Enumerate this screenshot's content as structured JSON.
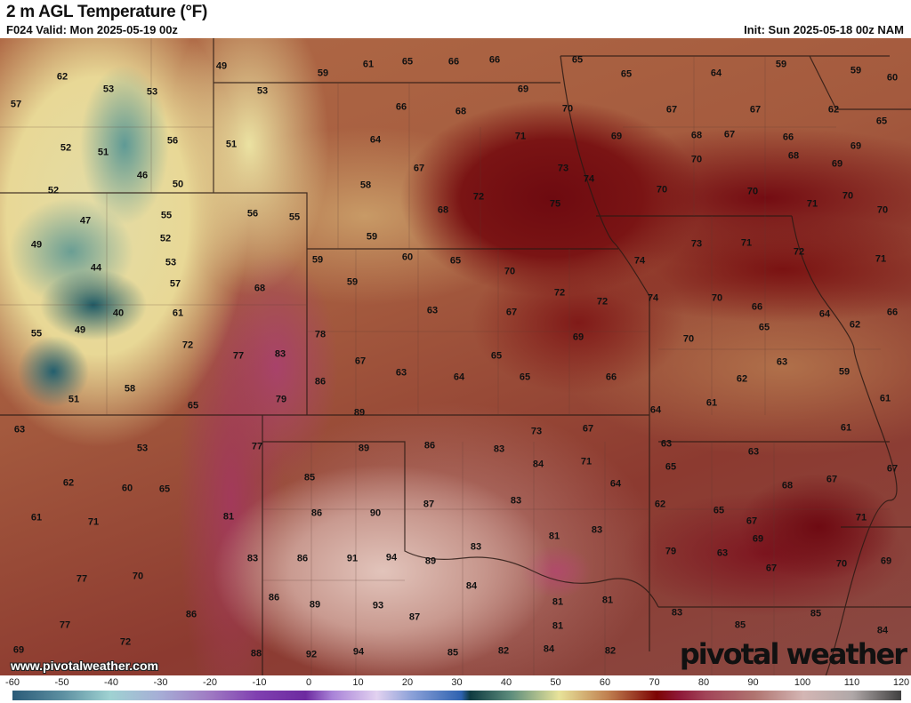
{
  "header": {
    "title": "2 m AGL Temperature (°F)",
    "valid": "F024 Valid: Mon 2025-05-19 00z",
    "init": "Init: Sun 2025-05-18 00z NAM"
  },
  "map": {
    "variable": "2 m temperature",
    "units": "°F",
    "labels": [
      "62",
      "53",
      "53",
      "57",
      "49",
      "59",
      "61",
      "65",
      "66",
      "66",
      "65",
      "65",
      "64",
      "59",
      "59",
      "60",
      "53",
      "69",
      "66",
      "68",
      "70",
      "67",
      "67",
      "62",
      "65",
      "52",
      "51",
      "56",
      "51",
      "64",
      "71",
      "69",
      "68",
      "67",
      "66",
      "69",
      "46",
      "50",
      "67",
      "73",
      "74",
      "70",
      "68",
      "69",
      "52",
      "58",
      "72",
      "75",
      "70",
      "70",
      "70",
      "71",
      "70",
      "47",
      "55",
      "56",
      "55",
      "68",
      "49",
      "52",
      "59",
      "73",
      "71",
      "72",
      "71",
      "44",
      "53",
      "59",
      "60",
      "65",
      "74",
      "57",
      "59",
      "70",
      "72",
      "72",
      "74",
      "70",
      "40",
      "61",
      "68",
      "63",
      "67",
      "66",
      "64",
      "66",
      "55",
      "49",
      "72",
      "78",
      "69",
      "70",
      "65",
      "62",
      "77",
      "83",
      "67",
      "63",
      "64",
      "65",
      "65",
      "66",
      "63",
      "59",
      "58",
      "51",
      "86",
      "79",
      "62",
      "61",
      "65",
      "89",
      "64",
      "61",
      "63",
      "73",
      "67",
      "61",
      "53",
      "77",
      "89",
      "86",
      "83",
      "63",
      "63",
      "84",
      "71",
      "65",
      "67",
      "62",
      "60",
      "65",
      "85",
      "64",
      "68",
      "67",
      "87",
      "83",
      "62",
      "65",
      "61",
      "71",
      "81",
      "86",
      "90",
      "83",
      "67",
      "71",
      "83",
      "81",
      "69",
      "77",
      "70",
      "83",
      "86",
      "91",
      "94",
      "89",
      "79",
      "63",
      "67",
      "70",
      "69",
      "84",
      "86",
      "89",
      "93",
      "87",
      "81",
      "81",
      "83",
      "85",
      "86",
      "77",
      "81",
      "85",
      "84",
      "72",
      "69",
      "88",
      "92",
      "94",
      "85",
      "82",
      "84",
      "82"
    ]
  },
  "watermark": {
    "site": "www.pivotalweather.com",
    "logo": "pivotal weather"
  },
  "colorbar": {
    "ticks": [
      "-60",
      "-50",
      "-40",
      "-30",
      "-20",
      "-10",
      "0",
      "10",
      "20",
      "30",
      "40",
      "50",
      "60",
      "70",
      "80",
      "90",
      "100",
      "110",
      "120"
    ],
    "range": [
      -60,
      120
    ],
    "colors": {
      "-60": "#2b5b78",
      "-40": "#9fd2d2",
      "0": "#6d2aa0",
      "30": "#2e62b0",
      "40": "#5c8c7c",
      "50": "#e8e39a",
      "60": "#c08050",
      "70": "#7d0404",
      "80": "#a24458",
      "100": "#d4b6b4",
      "120": "#404040"
    }
  }
}
